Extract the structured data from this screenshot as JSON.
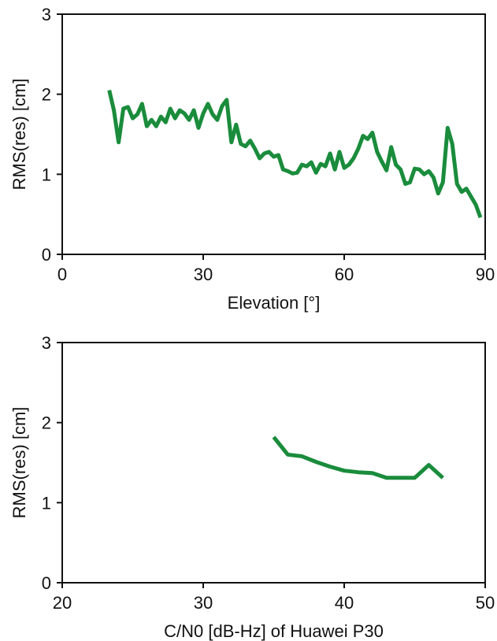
{
  "chart_data": [
    {
      "type": "line",
      "xlabel": "Elevation [°]",
      "ylabel": "RMS(res) [cm]",
      "xlim": [
        0,
        90
      ],
      "ylim": [
        0,
        3
      ],
      "xticks": [
        0,
        30,
        60,
        90
      ],
      "xtick_labels": [
        "0",
        "30",
        "60",
        "90"
      ],
      "yticks": [
        0,
        1,
        2,
        3
      ],
      "ytick_labels": [
        "0",
        "1",
        "2",
        "3"
      ],
      "grid": false,
      "color": "#1a8c3c",
      "series": [
        {
          "x": [
            10,
            11,
            12,
            13,
            14,
            15,
            16,
            17,
            18,
            19,
            20,
            21,
            22,
            23,
            24,
            25,
            26,
            27,
            28,
            29,
            30,
            31,
            32,
            33,
            34,
            35,
            36,
            37,
            38,
            39,
            40,
            41,
            42,
            43,
            44,
            45,
            46,
            47,
            48,
            49,
            50,
            51,
            52,
            53,
            54,
            55,
            56,
            57,
            58,
            59,
            60,
            61,
            62,
            63,
            64,
            65,
            66,
            67,
            68,
            69,
            70,
            71,
            72,
            73,
            74,
            75,
            76,
            77,
            78,
            79,
            80,
            81,
            82,
            83,
            84,
            85,
            86,
            87,
            88,
            89
          ],
          "y": [
            2.05,
            1.8,
            1.4,
            1.82,
            1.84,
            1.7,
            1.75,
            1.88,
            1.6,
            1.68,
            1.6,
            1.72,
            1.65,
            1.82,
            1.7,
            1.8,
            1.76,
            1.68,
            1.8,
            1.58,
            1.76,
            1.88,
            1.75,
            1.68,
            1.85,
            1.93,
            1.4,
            1.62,
            1.38,
            1.35,
            1.42,
            1.32,
            1.2,
            1.26,
            1.28,
            1.22,
            1.24,
            1.06,
            1.04,
            1.01,
            1.02,
            1.12,
            1.1,
            1.15,
            1.02,
            1.13,
            1.1,
            1.26,
            1.06,
            1.28,
            1.08,
            1.12,
            1.2,
            1.32,
            1.48,
            1.44,
            1.52,
            1.28,
            1.16,
            1.05,
            1.34,
            1.12,
            1.06,
            0.88,
            0.9,
            1.07,
            1.06,
            1.0,
            1.04,
            0.96,
            0.76,
            0.9,
            1.58,
            1.38,
            0.88,
            0.78,
            0.82,
            0.72,
            0.62,
            0.46
          ]
        }
      ]
    },
    {
      "type": "line",
      "xlabel": "C/N0 [dB-Hz] of Huawei P30",
      "ylabel": "RMS(res) [cm]",
      "xlim": [
        20,
        50
      ],
      "ylim": [
        0,
        3
      ],
      "xticks": [
        20,
        30,
        40,
        50
      ],
      "xtick_labels": [
        "20",
        "30",
        "40",
        "50"
      ],
      "yticks": [
        0,
        1,
        2,
        3
      ],
      "ytick_labels": [
        "0",
        "1",
        "2",
        "3"
      ],
      "grid": false,
      "color": "#1a8c3c",
      "series": [
        {
          "x": [
            35,
            36,
            37,
            38,
            39,
            40,
            41,
            42,
            43,
            44,
            45,
            46,
            47
          ],
          "y": [
            1.82,
            1.6,
            1.58,
            1.51,
            1.45,
            1.4,
            1.38,
            1.37,
            1.31,
            1.31,
            1.31,
            1.47,
            1.31
          ]
        }
      ]
    }
  ]
}
